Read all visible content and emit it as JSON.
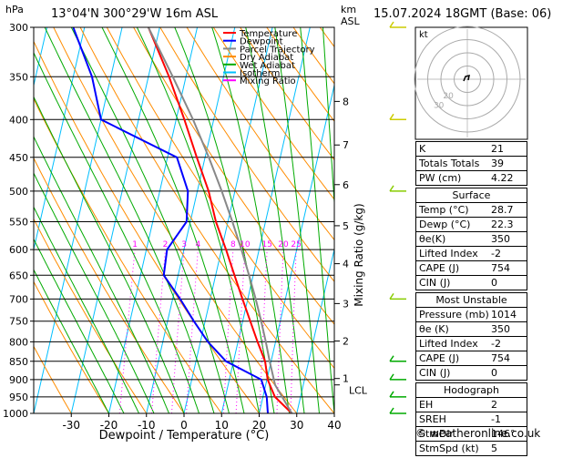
{
  "header": {
    "pressure_unit": "hPa",
    "location": "13°04'N 300°29'W 16m ASL",
    "height_unit": "km",
    "height_unit2": "ASL",
    "datetime": "15.07.2024 18GMT (Base: 06)"
  },
  "chart_data": {
    "type": "line",
    "title": "",
    "xlabel": "Dewpoint / Temperature (°C)",
    "ylabel": "hPa",
    "mixing_ratio_label": "Mixing Ratio (g/kg)",
    "xlim": [
      -40,
      40
    ],
    "x_ticks": [
      "-30",
      "-20",
      "-10",
      "0",
      "10",
      "20",
      "30",
      "40"
    ],
    "x_tick_values": [
      -30,
      -20,
      -10,
      0,
      10,
      20,
      30,
      40
    ],
    "pressure_levels": [
      "300",
      "350",
      "400",
      "450",
      "500",
      "550",
      "600",
      "650",
      "700",
      "750",
      "800",
      "850",
      "900",
      "950",
      "1000"
    ],
    "pressure_values": [
      300,
      350,
      400,
      450,
      500,
      550,
      600,
      650,
      700,
      750,
      800,
      850,
      900,
      950,
      1000
    ],
    "ylim": [
      1000,
      300
    ],
    "skew_degC_per_decade": 45,
    "km_ticks": [
      {
        "label": "8",
        "p": 378
      },
      {
        "label": "7",
        "p": 433
      },
      {
        "label": "6",
        "p": 490
      },
      {
        "label": "5",
        "p": 557
      },
      {
        "label": "4",
        "p": 627
      },
      {
        "label": "3",
        "p": 710
      },
      {
        "label": "2",
        "p": 798
      },
      {
        "label": "1",
        "p": 897
      }
    ],
    "lcl": {
      "label": "LCL",
      "p": 915
    },
    "mixing_ratio_labels": [
      "1",
      "2",
      "3",
      "4",
      "8",
      "10",
      "15",
      "20",
      "25"
    ],
    "mixing_ratio_values": [
      1,
      2,
      3,
      4,
      8,
      10,
      15,
      20,
      25
    ],
    "legend": [
      {
        "name": "Temperature",
        "color": "#ff0000"
      },
      {
        "name": "Dewpoint",
        "color": "#0000ff"
      },
      {
        "name": "Parcel Trajectory",
        "color": "#888888"
      },
      {
        "name": "Dry Adiabat",
        "color": "#ff8c00"
      },
      {
        "name": "Wet Adiabat",
        "color": "#00aa00"
      },
      {
        "name": "Isotherm",
        "color": "#00bfff"
      },
      {
        "name": "Mixing Ratio",
        "color": "#ff00ff"
      }
    ],
    "legend_placement": "top-left",
    "series": [
      {
        "name": "Temperature",
        "color": "#ff0000",
        "points": [
          [
            1000,
            28.7
          ],
          [
            950,
            23.2
          ],
          [
            900,
            20.2
          ],
          [
            850,
            18.4
          ],
          [
            800,
            15.2
          ],
          [
            750,
            12.0
          ],
          [
            700,
            8.6
          ],
          [
            650,
            5.0
          ],
          [
            600,
            1.2
          ],
          [
            550,
            -3.2
          ],
          [
            500,
            -7.0
          ],
          [
            450,
            -12.2
          ],
          [
            400,
            -17.8
          ],
          [
            350,
            -24.5
          ],
          [
            300,
            -33.0
          ]
        ]
      },
      {
        "name": "Dewpoint",
        "color": "#0000ff",
        "points": [
          [
            1000,
            22.3
          ],
          [
            950,
            21.0
          ],
          [
            900,
            18.5
          ],
          [
            850,
            8.0
          ],
          [
            800,
            2.0
          ],
          [
            750,
            -3.0
          ],
          [
            700,
            -8.0
          ],
          [
            650,
            -13.8
          ],
          [
            600,
            -14.5
          ],
          [
            550,
            -11.0
          ],
          [
            500,
            -12.5
          ],
          [
            450,
            -17.5
          ],
          [
            400,
            -40.0
          ],
          [
            350,
            -45.0
          ],
          [
            300,
            -53.0
          ]
        ]
      },
      {
        "name": "Parcel Trajectory",
        "color": "#888888",
        "points": [
          [
            1000,
            28.7
          ],
          [
            915,
            22.5
          ],
          [
            850,
            19.6
          ],
          [
            800,
            17.4
          ],
          [
            750,
            14.9
          ],
          [
            700,
            12.1
          ],
          [
            650,
            8.9
          ],
          [
            600,
            5.3
          ],
          [
            550,
            1.2
          ],
          [
            500,
            -3.5
          ],
          [
            450,
            -9.0
          ],
          [
            400,
            -15.5
          ],
          [
            350,
            -23.5
          ],
          [
            300,
            -33.0
          ]
        ]
      }
    ]
  },
  "hodograph": {
    "label": "kt",
    "rings": [
      "10",
      "20",
      "30",
      "40"
    ]
  },
  "indices": [
    {
      "label": "K",
      "value": "21"
    },
    {
      "label": "Totals Totals",
      "value": "39"
    },
    {
      "label": "PW (cm)",
      "value": "4.22"
    }
  ],
  "surface": {
    "title": "Surface",
    "rows": [
      {
        "label": "Temp (°C)",
        "value": "28.7"
      },
      {
        "label": "Dewp (°C)",
        "value": "22.3"
      },
      {
        "label": "θe(K)",
        "value": "350"
      },
      {
        "label": "Lifted Index",
        "value": "-2"
      },
      {
        "label": "CAPE (J)",
        "value": "754"
      },
      {
        "label": "CIN (J)",
        "value": "0"
      }
    ]
  },
  "most_unstable": {
    "title": "Most Unstable",
    "rows": [
      {
        "label": "Pressure (mb)",
        "value": "1014"
      },
      {
        "label": "θe (K)",
        "value": "350"
      },
      {
        "label": "Lifted Index",
        "value": "-2"
      },
      {
        "label": "CAPE (J)",
        "value": "754"
      },
      {
        "label": "CIN (J)",
        "value": "0"
      }
    ]
  },
  "hodograph_table": {
    "title": "Hodograph",
    "rows": [
      {
        "label": "EH",
        "value": "2"
      },
      {
        "label": "SREH",
        "value": "-1"
      },
      {
        "label": "StmDir",
        "value": "146°"
      },
      {
        "label": "StmSpd (kt)",
        "value": "5"
      }
    ]
  },
  "copyright": "© weatheronline.co.uk"
}
